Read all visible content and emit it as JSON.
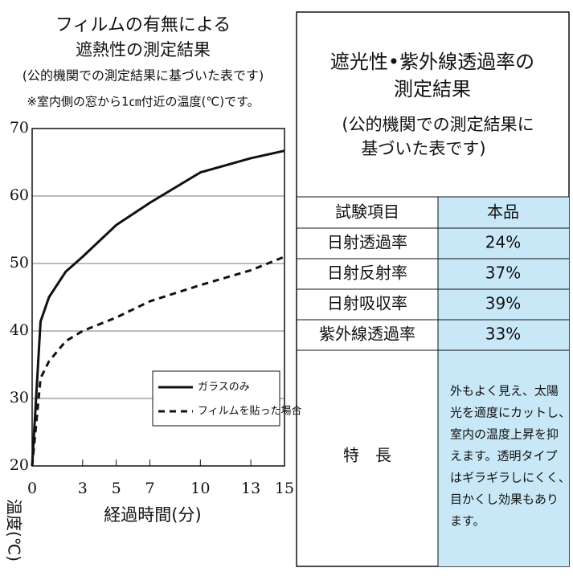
{
  "chart_data": {
    "type": "line",
    "title": [
      "フィルムの有無による",
      "遮熱性の測定結果"
    ],
    "subtitle": [
      "(公的機関での測定結果に基づいた表です)",
      "※室内側の窓から1㎝付近の温度(℃)です。"
    ],
    "xlabel": "経過時間(分)",
    "ylabel": "温度(℃)",
    "x": [
      0,
      0.5,
      1,
      2,
      3,
      5,
      7,
      10,
      13,
      15
    ],
    "series": [
      {
        "name": "ガラスのみ",
        "color": "#111111",
        "dash": false,
        "values": [
          20,
          41.4,
          45,
          48.8,
          51,
          55.7,
          59,
          63.5,
          65.6,
          66.7
        ]
      },
      {
        "name": "フィルムを貼った場合",
        "color": "#111111",
        "dash": true,
        "values": [
          20,
          33,
          35.5,
          38.5,
          40,
          42,
          44.4,
          46.8,
          49,
          51
        ]
      }
    ],
    "xlim": [
      0,
      15
    ],
    "xticks": [
      0,
      3,
      5,
      7,
      10,
      13,
      15
    ],
    "ylim": [
      20,
      70
    ],
    "yticks": [
      20,
      30,
      40,
      50,
      60,
      70
    ],
    "grid": true
  },
  "table": {
    "title": [
      "遮光性•紫外線透過率の",
      "測定結果"
    ],
    "subtitle": [
      "(公的機関での測定結果に",
      "基づいた表です)"
    ],
    "header": [
      "試験項目",
      "本品"
    ],
    "rows": [
      [
        "日射透過率",
        "24%"
      ],
      [
        "日射反射率",
        "37%"
      ],
      [
        "日射吸収率",
        "39%"
      ],
      [
        "紫外線透過率",
        "33%"
      ]
    ],
    "feature_label": "特　長",
    "feature_text": [
      "外もよく見え、太陽",
      "光を適度にカットし、",
      "室内の温度上昇を抑",
      "えます。透明タイプ",
      "はギラギラしにくく、",
      "目かくし効果もあり",
      "ます。"
    ]
  }
}
